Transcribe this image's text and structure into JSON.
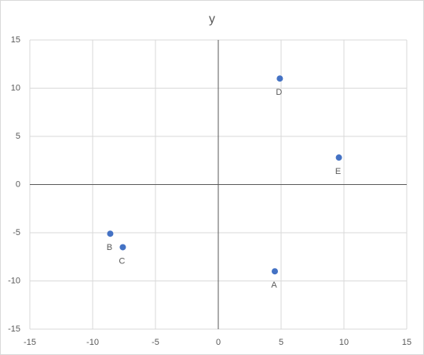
{
  "chart_data": {
    "type": "scatter",
    "title": "y",
    "series": [
      {
        "name": "y",
        "color": "#4472c4",
        "x": [
          4.5,
          -8.6,
          -7.6,
          4.9,
          9.6
        ],
        "values": [
          -9,
          -5.1,
          -6.5,
          11,
          2.8
        ]
      }
    ],
    "labels": [
      "A",
      "B",
      "C",
      "D",
      "E"
    ],
    "xlim": [
      -15,
      15
    ],
    "xticks": [
      -15,
      -10,
      -5,
      0,
      5,
      10,
      15
    ],
    "ylim": [
      -15,
      15
    ],
    "yticks": [
      -15,
      -10,
      -5,
      0,
      5,
      10,
      15
    ],
    "grid": true
  }
}
